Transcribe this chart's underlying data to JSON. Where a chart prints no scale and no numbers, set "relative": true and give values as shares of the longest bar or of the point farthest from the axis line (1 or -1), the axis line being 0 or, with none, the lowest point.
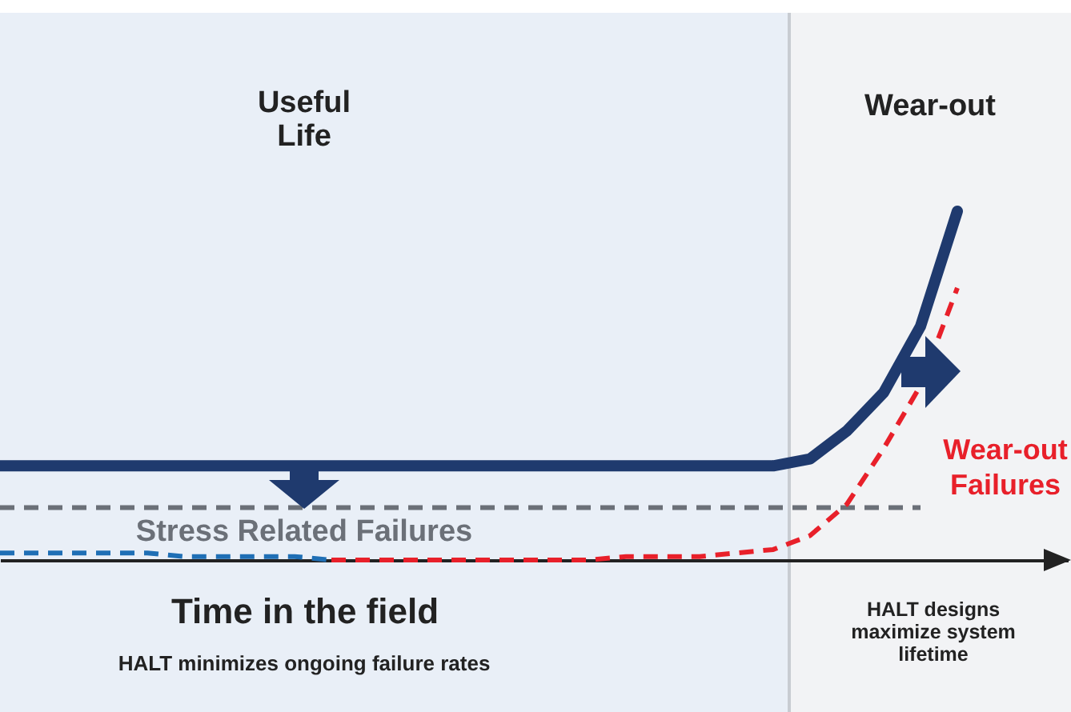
{
  "chart_data": {
    "type": "line",
    "relative": true,
    "marker": "none",
    "categories": [
      null,
      null,
      null,
      null,
      null,
      null,
      null,
      null,
      null,
      null,
      null,
      null,
      null,
      null,
      null,
      null,
      null,
      null,
      null,
      null,
      null,
      null,
      null,
      null,
      null,
      null,
      null,
      null,
      null,
      null
    ],
    "xlabel": "Time in the field",
    "annotations": [
      "Useful Life",
      "Wear-out",
      "HALT minimizes ongoing failure rates",
      "HALT designs maximize system lifetime"
    ],
    "series": [
      {
        "color": "#1f3a6e",
        "line_style": "solid",
        "values": [
          0.27,
          0.27,
          0.27,
          0.27,
          0.27,
          0.27,
          0.27,
          0.27,
          0.27,
          0.27,
          0.27,
          0.27,
          0.27,
          0.27,
          0.27,
          0.27,
          0.27,
          0.27,
          0.27,
          0.27,
          0.27,
          0.27,
          0.29,
          0.37,
          0.48,
          0.67,
          1.0,
          null,
          null,
          null
        ]
      },
      {
        "name": "Stress Related Failures",
        "color": "#6b7078",
        "line_style": "dashed",
        "values": [
          0.15,
          0.15,
          0.15,
          0.15,
          0.15,
          0.15,
          0.15,
          0.15,
          0.15,
          0.15,
          0.15,
          0.15,
          0.15,
          0.15,
          0.15,
          0.15,
          0.15,
          0.15,
          0.15,
          0.15,
          0.15,
          0.15,
          0.15,
          0.15,
          0.15,
          0.15,
          null,
          null,
          null,
          null
        ]
      },
      {
        "color": "#1f6fb5",
        "line_style": "dashed",
        "values": [
          0.02,
          0.02,
          0.02,
          0.02,
          0.02,
          0.01,
          0.01,
          0.01,
          0.01,
          0,
          null,
          null,
          null,
          null,
          null,
          null,
          null,
          null,
          null,
          null,
          null,
          null,
          null,
          null,
          null,
          null,
          null,
          null,
          null,
          null
        ]
      },
      {
        "name": "Wear-out Failures",
        "color": "#e8202a",
        "line_style": "dashed",
        "values": [
          null,
          null,
          null,
          null,
          null,
          null,
          null,
          null,
          null,
          0,
          0,
          0,
          0,
          0,
          0,
          0,
          0,
          0.01,
          0.01,
          0.01,
          0.02,
          0.03,
          0.07,
          0.16,
          0.32,
          0.5,
          0.78,
          null,
          null,
          null
        ]
      }
    ]
  }
}
